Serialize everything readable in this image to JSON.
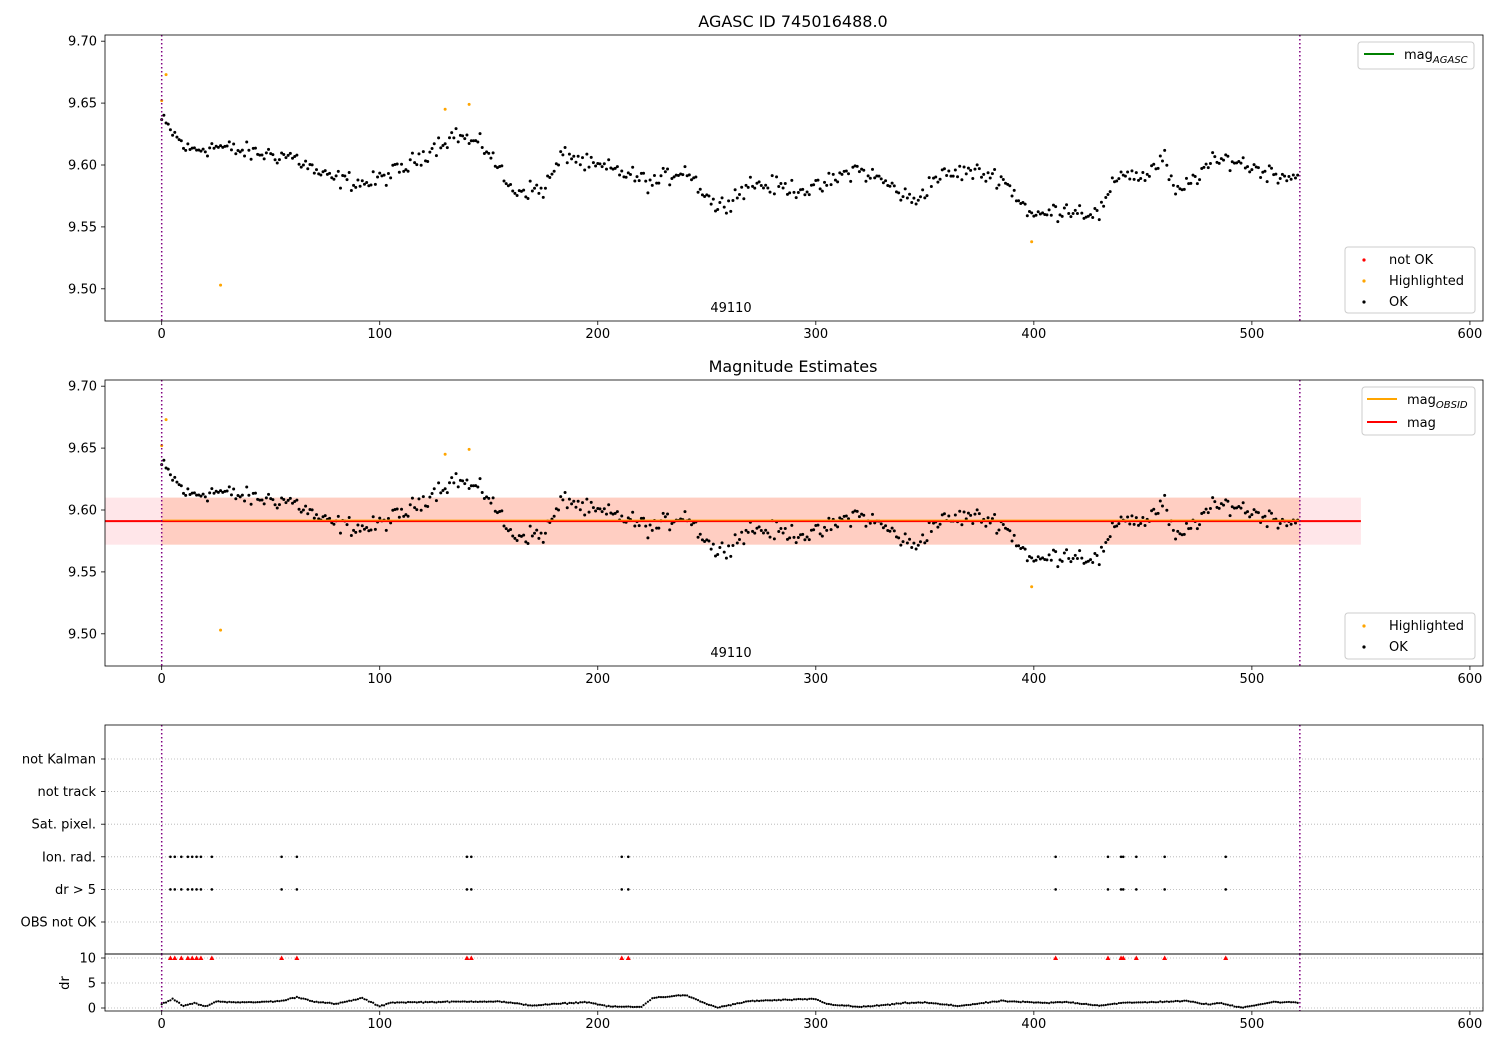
{
  "figure": {
    "title": "AGASC ID 745016488.0",
    "obsid_label": "49110"
  },
  "chart_data": [
    {
      "type": "scatter",
      "title": "AGASC ID 745016488.0",
      "xlim": [
        -26,
        606
      ],
      "ylim": [
        9.474,
        9.705
      ],
      "xticks": [
        0,
        100,
        200,
        300,
        400,
        500,
        600
      ],
      "yticks": [
        9.5,
        9.55,
        9.6,
        9.65,
        9.7
      ],
      "ytick_labels": [
        "9.50",
        "9.55",
        "9.60",
        "9.65",
        "9.70"
      ],
      "vlines": [
        0,
        522
      ],
      "annotation": "49110",
      "legend_lines": [
        {
          "name": "mag",
          "subscript": "AGASC",
          "color": "#008000"
        }
      ],
      "legend_points": [
        {
          "name": "not OK",
          "color": "#ff0000"
        },
        {
          "name": "Highlighted",
          "color": "#ffa500"
        },
        {
          "name": "OK",
          "color": "#000000"
        }
      ],
      "highlighted": [
        [
          0,
          9.652
        ],
        [
          2,
          9.673
        ],
        [
          27,
          9.503
        ],
        [
          130,
          9.645
        ],
        [
          141,
          9.649
        ],
        [
          399,
          9.538
        ]
      ],
      "ok_series": {
        "n": 522,
        "segments": [
          [
            0,
            9.636
          ],
          [
            12,
            9.612
          ],
          [
            25,
            9.615
          ],
          [
            40,
            9.61
          ],
          [
            60,
            9.607
          ],
          [
            75,
            9.59
          ],
          [
            95,
            9.585
          ],
          [
            112,
            9.598
          ],
          [
            125,
            9.615
          ],
          [
            135,
            9.625
          ],
          [
            150,
            9.612
          ],
          [
            160,
            9.58
          ],
          [
            175,
            9.58
          ],
          [
            185,
            9.61
          ],
          [
            195,
            9.6
          ],
          [
            210,
            9.595
          ],
          [
            225,
            9.585
          ],
          [
            240,
            9.597
          ],
          [
            255,
            9.565
          ],
          [
            270,
            9.585
          ],
          [
            285,
            9.582
          ],
          [
            300,
            9.58
          ],
          [
            318,
            9.597
          ],
          [
            330,
            9.588
          ],
          [
            345,
            9.57
          ],
          [
            355,
            9.59
          ],
          [
            370,
            9.595
          ],
          [
            385,
            9.59
          ],
          [
            400,
            9.558
          ],
          [
            415,
            9.565
          ],
          [
            430,
            9.56
          ],
          [
            440,
            9.595
          ],
          [
            450,
            9.59
          ],
          [
            460,
            9.605
          ],
          [
            465,
            9.575
          ],
          [
            480,
            9.6
          ],
          [
            490,
            9.605
          ],
          [
            505,
            9.595
          ],
          [
            521,
            9.59
          ]
        ]
      }
    },
    {
      "type": "scatter",
      "title": "Magnitude Estimates",
      "xlim": [
        -26,
        606
      ],
      "ylim": [
        9.474,
        9.705
      ],
      "xticks": [
        0,
        100,
        200,
        300,
        400,
        500,
        600
      ],
      "yticks": [
        9.5,
        9.55,
        9.6,
        9.65,
        9.7
      ],
      "ytick_labels": [
        "9.50",
        "9.55",
        "9.60",
        "9.65",
        "9.70"
      ],
      "vlines": [
        0,
        522
      ],
      "annotation": "49110",
      "mag": 9.591,
      "mag_band": [
        9.572,
        9.61
      ],
      "legend_lines": [
        {
          "name": "mag",
          "subscript": "OBSID",
          "color": "#ffa500"
        },
        {
          "name": "mag",
          "subscript": "",
          "color": "#ff0000"
        }
      ],
      "legend_points": [
        {
          "name": "Highlighted",
          "color": "#ffa500"
        },
        {
          "name": "OK",
          "color": "#000000"
        }
      ],
      "highlighted": [
        [
          0,
          9.652
        ],
        [
          2,
          9.673
        ],
        [
          27,
          9.503
        ],
        [
          130,
          9.645
        ],
        [
          141,
          9.649
        ],
        [
          399,
          9.538
        ]
      ]
    },
    {
      "type": "scatter",
      "title": "",
      "xlim": [
        -26,
        606
      ],
      "xticks": [
        0,
        100,
        200,
        300,
        400,
        500,
        600
      ],
      "vlines": [
        0,
        522
      ],
      "flag_rows": [
        "not Kalman",
        "not track",
        "Sat. pixel.",
        "Ion. rad.",
        "dr > 5",
        "OBS not OK"
      ],
      "flag_times": {
        "Ion. rad.": [
          4,
          6,
          9,
          12,
          14,
          16,
          18,
          23,
          55,
          62,
          140,
          142,
          211,
          214,
          410,
          434,
          440,
          441,
          447,
          460,
          488
        ],
        "dr > 5": [
          4,
          6,
          9,
          12,
          14,
          16,
          18,
          23,
          55,
          62,
          140,
          142,
          211,
          214,
          410,
          434,
          440,
          441,
          447,
          460,
          488
        ]
      },
      "dr": {
        "ylabel": "dr",
        "ylim": [
          -0.6,
          10.8
        ],
        "yticks": [
          0,
          5,
          10
        ],
        "clip_value": 10,
        "clipped_times": [
          4,
          6,
          9,
          12,
          14,
          16,
          18,
          23,
          55,
          62,
          140,
          142,
          211,
          214,
          410,
          434,
          440,
          441,
          447,
          460,
          488
        ],
        "segments": [
          [
            0,
            0.8
          ],
          [
            5,
            1.8
          ],
          [
            10,
            0.4
          ],
          [
            15,
            1.0
          ],
          [
            20,
            0.3
          ],
          [
            25,
            1.3
          ],
          [
            40,
            1.1
          ],
          [
            55,
            1.4
          ],
          [
            62,
            2.2
          ],
          [
            70,
            1.3
          ],
          [
            80,
            0.8
          ],
          [
            92,
            2.0
          ],
          [
            100,
            0.3
          ],
          [
            105,
            1.1
          ],
          [
            125,
            1.2
          ],
          [
            145,
            1.3
          ],
          [
            155,
            1.3
          ],
          [
            170,
            0.5
          ],
          [
            195,
            1.2
          ],
          [
            205,
            0.3
          ],
          [
            220,
            0.2
          ],
          [
            225,
            2.0
          ],
          [
            240,
            2.6
          ],
          [
            250,
            0.8
          ],
          [
            255,
            0.1
          ],
          [
            270,
            1.4
          ],
          [
            300,
            1.8
          ],
          [
            305,
            0.8
          ],
          [
            320,
            0.2
          ],
          [
            335,
            0.7
          ],
          [
            340,
            1.0
          ],
          [
            350,
            1.1
          ],
          [
            365,
            0.4
          ],
          [
            385,
            1.4
          ],
          [
            395,
            1.2
          ],
          [
            405,
            1.0
          ],
          [
            415,
            1.2
          ],
          [
            430,
            0.5
          ],
          [
            440,
            1.0
          ],
          [
            455,
            1.2
          ],
          [
            470,
            1.4
          ],
          [
            480,
            0.7
          ],
          [
            485,
            1.0
          ],
          [
            495,
            0.1
          ],
          [
            510,
            1.2
          ],
          [
            521,
            1.1
          ]
        ]
      }
    }
  ]
}
